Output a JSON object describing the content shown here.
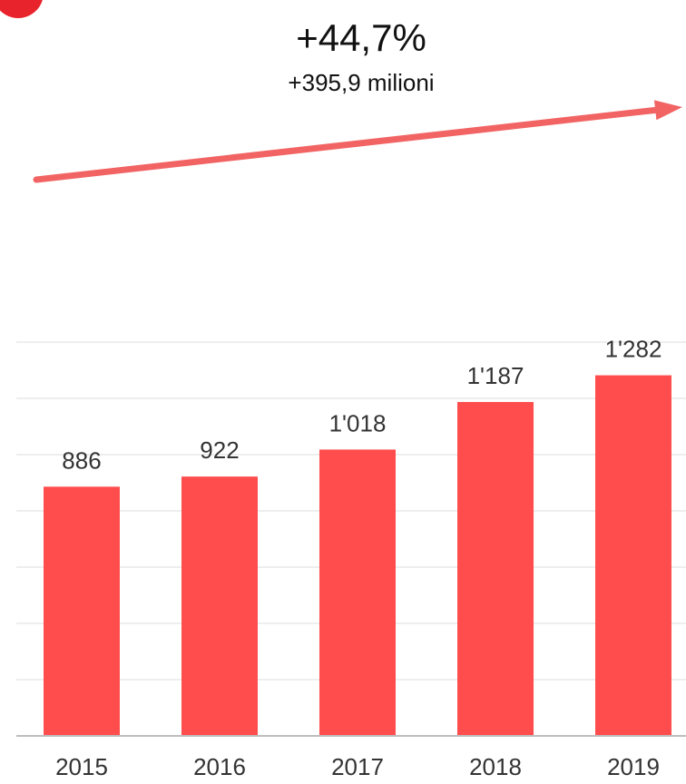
{
  "headline": {
    "change_percent": "+44,7%",
    "change_absolute": "+395,9 milioni"
  },
  "colors": {
    "bar": "#ff4d4d",
    "arrow": "#f26464",
    "badge": "#e8232b"
  },
  "chart_data": {
    "type": "bar",
    "categories": [
      "2015",
      "2016",
      "2017",
      "2018",
      "2019"
    ],
    "values": [
      886,
      922,
      1018,
      1187,
      1282
    ],
    "value_labels": [
      "886",
      "922",
      "1'018",
      "1'187",
      "1'282"
    ],
    "ylim": [
      0,
      1400
    ],
    "grid": true,
    "annotation": "increasing-trend-arrow"
  }
}
